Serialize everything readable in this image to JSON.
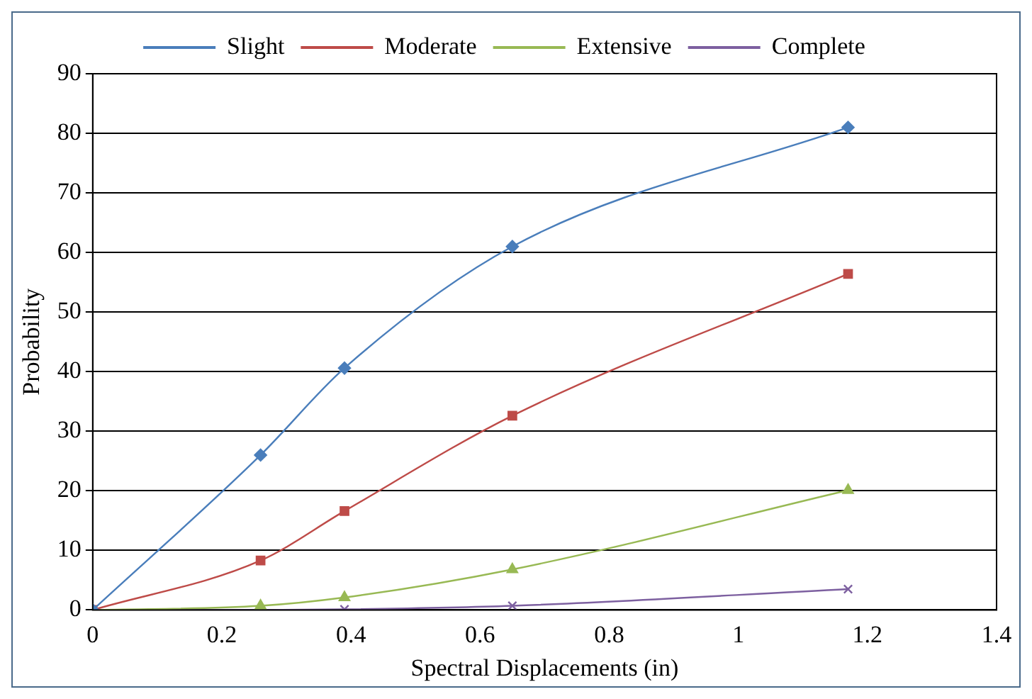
{
  "chart_data": {
    "type": "line",
    "xlabel": "Spectral Displacements (in)",
    "ylabel": "Probability",
    "xlim": [
      0,
      1.4
    ],
    "xticks": [
      0,
      0.2,
      0.4,
      0.6,
      0.8,
      1,
      1.2,
      1.4
    ],
    "ylim": [
      0,
      90
    ],
    "yticks": [
      0,
      10,
      20,
      30,
      40,
      50,
      60,
      70,
      80,
      90
    ],
    "grid": "y",
    "legend": "top",
    "x": [
      0,
      0.26,
      0.39,
      0.65,
      1.17
    ],
    "series": [
      {
        "name": "Slight",
        "color": "#4a7ebb",
        "marker": "diamond",
        "values": [
          0,
          26,
          40.6,
          61,
          81
        ]
      },
      {
        "name": "Moderate",
        "color": "#be4b48",
        "marker": "square",
        "values": [
          0,
          8.3,
          16.6,
          32.6,
          56.4
        ]
      },
      {
        "name": "Extensive",
        "color": "#98b954",
        "marker": "triangle",
        "values": [
          0,
          0.7,
          2.1,
          6.8,
          20.1
        ]
      },
      {
        "name": "Complete",
        "color": "#7d60a0",
        "marker": "cross",
        "values": [
          0,
          0,
          0.1,
          0.7,
          3.5
        ]
      }
    ]
  }
}
